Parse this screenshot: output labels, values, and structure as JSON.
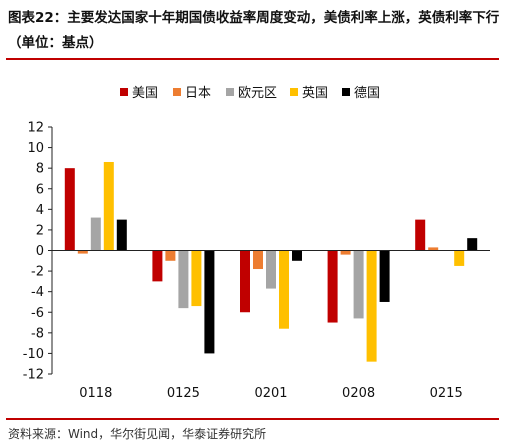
{
  "title": {
    "label": "图表22：",
    "text": "主要发达国家十年期国债收益率周度变动，美债利率上涨，英债利率下行（单位：基点）"
  },
  "source": "资料来源：Wind，华尔街见闻，华泰证券研究所",
  "chart_data": {
    "type": "bar",
    "categories": [
      "0118",
      "0125",
      "0201",
      "0208",
      "0215"
    ],
    "ylim": [
      -12,
      12
    ],
    "yticks": [
      12,
      10,
      8,
      6,
      4,
      2,
      0,
      -2,
      -4,
      -6,
      -8,
      -10,
      -12
    ],
    "legend_position": "top",
    "series": [
      {
        "name": "美国",
        "color": "#c00000",
        "values": [
          8.0,
          -3.0,
          -6.0,
          -7.0,
          3.0
        ]
      },
      {
        "name": "日本",
        "color": "#ed7d31",
        "values": [
          -0.3,
          -1.0,
          -1.8,
          -0.4,
          0.3
        ]
      },
      {
        "name": "欧元区",
        "color": "#a5a5a5",
        "values": [
          3.2,
          -5.6,
          -3.7,
          -6.6,
          0.0
        ]
      },
      {
        "name": "英国",
        "color": "#ffc000",
        "values": [
          8.6,
          -5.4,
          -7.6,
          -10.8,
          -1.5
        ]
      },
      {
        "name": "德国",
        "color": "#000000",
        "values": [
          3.0,
          -10.0,
          -1.0,
          -5.0,
          1.2
        ]
      }
    ]
  }
}
